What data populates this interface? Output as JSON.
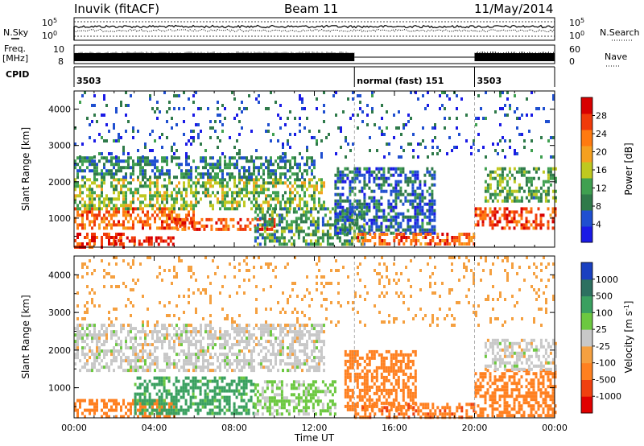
{
  "header": {
    "title": "Inuvik (fitACF)",
    "beam": "Beam 11",
    "date": "11/May/2014"
  },
  "top_panels": {
    "nsky_label": "N.Sky",
    "nsearch_label": "N.Search",
    "freq_label": "Freq.",
    "freq_unit": "[MHz]",
    "nave_label": "Nave",
    "cpid_label": "CPID",
    "noise_left_ticks": [
      "10^5",
      "10^0"
    ],
    "noise_right_ticks": [
      "10^5",
      "10^0"
    ],
    "freq_left_ticks": [
      "10",
      "8"
    ],
    "nave_right_ticks": [
      "60",
      "0"
    ],
    "cpid_segments": [
      {
        "label": "3503",
        "start": 0.0,
        "end": 14.0
      },
      {
        "label": "normal (fast) 151",
        "start": 14.0,
        "end": 20.0
      },
      {
        "label": "3503",
        "start": 20.0,
        "end": 24.0
      }
    ]
  },
  "chart_data": [
    {
      "type": "heatmap",
      "name": "power",
      "ylabel": "Slant Range [km]",
      "yticks": [
        "1000",
        "2000",
        "3000",
        "4000"
      ],
      "ylim": [
        200,
        4500
      ],
      "xlim": [
        0,
        24
      ],
      "colorbar": {
        "label": "Power [dB]",
        "ticks": [
          "4",
          "8",
          "12",
          "16",
          "20",
          "24",
          "28"
        ],
        "range": [
          0,
          32
        ],
        "colors": [
          "#1a1ae6",
          "#1f4fd0",
          "#2f7a4a",
          "#3fa050",
          "#bfc820",
          "#f5a020",
          "#ff7a10",
          "#f03a0a",
          "#d80000"
        ]
      },
      "scatter_bands": [
        {
          "t0": 0.0,
          "t1": 2.5,
          "r0": 200,
          "r1": 600,
          "level": 27
        },
        {
          "t0": 2.0,
          "t1": 5.0,
          "r0": 250,
          "r1": 500,
          "level": 29
        },
        {
          "t0": 0.0,
          "t1": 6.0,
          "r0": 700,
          "r1": 1300,
          "level": 24
        },
        {
          "t0": 5.0,
          "t1": 10.0,
          "r0": 700,
          "r1": 1000,
          "level": 26
        },
        {
          "t0": 0.0,
          "t1": 12.5,
          "r0": 1300,
          "r1": 2100,
          "level": 14
        },
        {
          "t0": 0.0,
          "t1": 12.0,
          "r0": 2100,
          "r1": 2700,
          "level": 9
        },
        {
          "t0": 9.0,
          "t1": 14.5,
          "r0": 300,
          "r1": 1300,
          "level": 11
        },
        {
          "t0": 13.0,
          "t1": 18.0,
          "r0": 600,
          "r1": 2400,
          "level": 7
        },
        {
          "t0": 14.0,
          "t1": 20.0,
          "r0": 300,
          "r1": 600,
          "level": 25
        },
        {
          "t0": 20.0,
          "t1": 24.0,
          "r0": 700,
          "r1": 1300,
          "level": 26
        },
        {
          "t0": 20.5,
          "t1": 24.0,
          "r0": 1500,
          "r1": 2400,
          "level": 12
        },
        {
          "t0": 0.0,
          "t1": 24.0,
          "r0": 2700,
          "r1": 4500,
          "level": 6
        }
      ]
    },
    {
      "type": "heatmap",
      "name": "velocity",
      "ylabel": "Slant Range [km]",
      "yticks": [
        "1000",
        "2000",
        "3000",
        "4000"
      ],
      "ylim": [
        200,
        4500
      ],
      "xlim": [
        0,
        24
      ],
      "xticks": [
        "00:00",
        "04:00",
        "08:00",
        "12:00",
        "16:00",
        "20:00",
        "00:00"
      ],
      "xlabel": "Time UT",
      "colorbar": {
        "label": "Velocity [m s",
        "label_sup": "-1",
        "label_end": "]",
        "ticks": [
          "-1000",
          "-500",
          "-100",
          "-25",
          "25",
          "100",
          "500",
          "1000"
        ],
        "colors": [
          "#e00000",
          "#f04010",
          "#ff8020",
          "#f5a040",
          "#c8c8c8",
          "#6cc840",
          "#3aa060",
          "#2d7060",
          "#1a40c0"
        ]
      },
      "scatter_bands": [
        {
          "t0": 0.0,
          "t1": 5.0,
          "r0": 200,
          "r1": 700,
          "level": -200
        },
        {
          "t0": 0.0,
          "t1": 12.5,
          "r0": 1500,
          "r1": 2700,
          "level": 0
        },
        {
          "t0": 3.0,
          "t1": 9.0,
          "r0": 300,
          "r1": 1300,
          "level": 150
        },
        {
          "t0": 9.0,
          "t1": 13.0,
          "r0": 300,
          "r1": 1200,
          "level": 40
        },
        {
          "t0": 13.5,
          "t1": 17.0,
          "r0": 400,
          "r1": 2000,
          "level": -300
        },
        {
          "t0": 14.0,
          "t1": 20.0,
          "r0": 250,
          "r1": 600,
          "level": -400
        },
        {
          "t0": 20.0,
          "t1": 24.0,
          "r0": 300,
          "r1": 1500,
          "level": -250
        },
        {
          "t0": 20.5,
          "t1": 24.0,
          "r0": 1500,
          "r1": 2300,
          "level": 0
        },
        {
          "t0": 0.0,
          "t1": 24.0,
          "r0": 2700,
          "r1": 4500,
          "level": -60
        }
      ]
    }
  ]
}
